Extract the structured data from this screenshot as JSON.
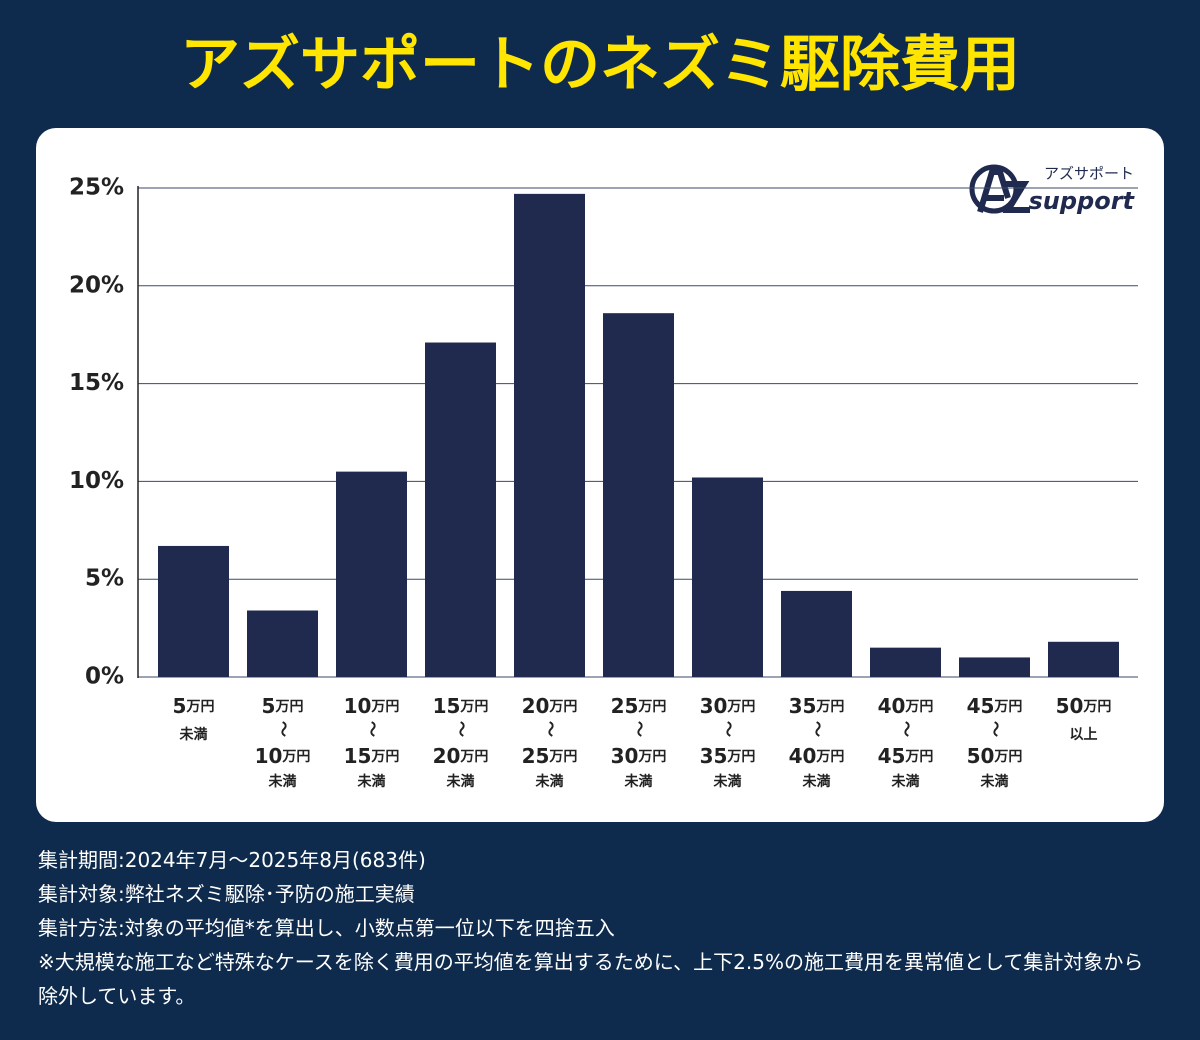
{
  "chart_data": {
    "type": "bar",
    "title": "アズサポートのネズミ駆除費用",
    "categories": [
      [
        "5万円",
        "未満"
      ],
      [
        "5万円",
        "～",
        "10万円",
        "未満"
      ],
      [
        "10万円",
        "～",
        "15万円",
        "未満"
      ],
      [
        "15万円",
        "～",
        "20万円",
        "未満"
      ],
      [
        "20万円",
        "～",
        "25万円",
        "未満"
      ],
      [
        "25万円",
        "～",
        "30万円",
        "未満"
      ],
      [
        "30万円",
        "～",
        "35万円",
        "未満"
      ],
      [
        "35万円",
        "～",
        "40万円",
        "未満"
      ],
      [
        "40万円",
        "～",
        "45万円",
        "未満"
      ],
      [
        "45万円",
        "～",
        "50万円",
        "未満"
      ],
      [
        "50万円",
        "以上"
      ]
    ],
    "values": [
      6.7,
      3.4,
      10.5,
      17.1,
      24.7,
      18.6,
      10.2,
      4.4,
      1.5,
      1.0,
      1.8
    ],
    "color": "#1f2a4e",
    "ylim": [
      0,
      25
    ],
    "yticks": [
      {
        "value": 0,
        "label": "0%"
      },
      {
        "value": 5,
        "label": "5%"
      },
      {
        "value": 10,
        "label": "10%"
      },
      {
        "value": 15,
        "label": "15%"
      },
      {
        "value": 20,
        "label": "20%"
      },
      {
        "value": 25,
        "label": "25%"
      }
    ],
    "grid": true,
    "logo": {
      "kana": "アズサポート",
      "word": "support"
    },
    "notes": [
      "集計期間:2024年7月～2025年8月(683件)",
      "集計対象:弊社ネズミ駆除･予防の施工実績",
      "集計方法:対象の平均値*を算出し、小数点第一位以下を四捨五入",
      "※大規模な施工など特殊なケースを除く費用の平均値を算出するために、上下2.5%の施工費用を異常値として集計対象から除外しています。"
    ]
  }
}
